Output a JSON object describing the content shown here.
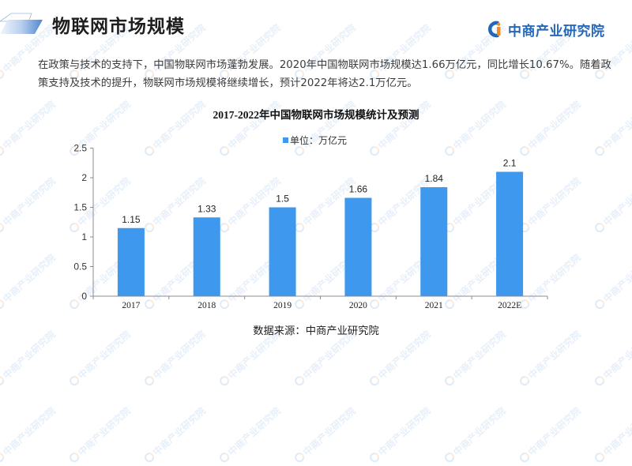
{
  "header": {
    "title": "物联网市场规模",
    "logo_text": "中商产业研究院",
    "accent_color": "#2467b8"
  },
  "intro": {
    "lines": [
      "在政策与技术的支持下，中国物联网市场蓬勃发展。2020年中国物联网市场规模达1.66万亿元，同比增长10.67%。随着政",
      "策支持及技术的提升，物联网市场规模将继续增长，预计2022年将达2.1万亿元。"
    ]
  },
  "chart_data": {
    "type": "bar",
    "title": "2017-2022年中国物联网市场规模统计及预测",
    "categories": [
      "2017",
      "2018",
      "2019",
      "2020",
      "2021",
      "2022E"
    ],
    "values": [
      1.15,
      1.33,
      1.5,
      1.66,
      1.84,
      2.1
    ],
    "value_labels": [
      "1.15",
      "1.33",
      "1.5",
      "1.66",
      "1.84",
      "2.1"
    ],
    "series": [
      {
        "name": "单位：万亿元",
        "values": [
          1.15,
          1.33,
          1.5,
          1.66,
          1.84,
          2.1
        ],
        "color": "#3d98ee"
      }
    ],
    "xlabel": "",
    "ylabel": "",
    "ylim": [
      0,
      2.5
    ],
    "yticks": [
      0,
      0.5,
      1,
      1.5,
      2,
      2.5
    ],
    "ytick_labels": [
      "0",
      "0.5",
      "1",
      "1.5",
      "2",
      "2.5"
    ],
    "grid": false,
    "legend": {
      "position": "top",
      "label": "单位：万亿元"
    },
    "data_labels": true
  },
  "footer": {
    "source": "数据来源：中商产业研究院"
  },
  "watermark": {
    "text": "中商产业研究院"
  }
}
